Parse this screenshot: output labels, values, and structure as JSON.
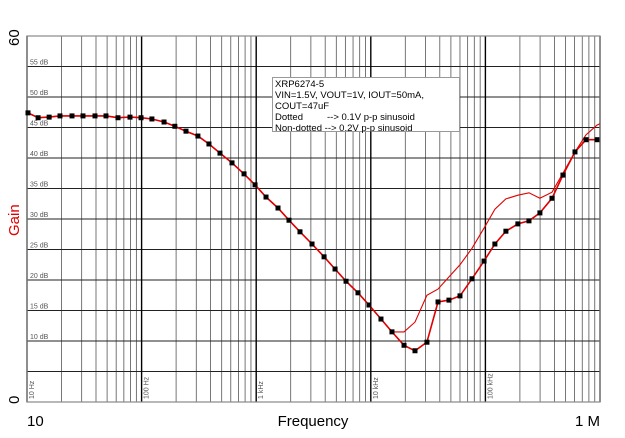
{
  "chart_data": {
    "type": "line",
    "title": "",
    "xlabel": "Frequency",
    "ylabel": "Gain",
    "xscale": "log",
    "xlim": [
      10,
      1000000
    ],
    "ylim": [
      0,
      60
    ],
    "x_end_labels": [
      "10",
      "1 M"
    ],
    "y_end_labels": [
      "0",
      "60"
    ],
    "y_grid_labels": [
      "10 dB",
      "15 dB",
      "20 dB",
      "25 dB",
      "30 dB",
      "35 dB",
      "40 dB",
      "45 dB",
      "50 dB",
      "55 dB"
    ],
    "y_grid_values": [
      10,
      15,
      20,
      25,
      30,
      35,
      40,
      45,
      50,
      55
    ],
    "x_decade_labels": [
      "10 Hz",
      "100 Hz",
      "1 kHz",
      "10 kHz",
      "100 kHz"
    ],
    "x_decade_values": [
      10,
      100,
      1000,
      10000,
      100000
    ],
    "grid": true,
    "legend": {
      "placement": "top-center",
      "lines": [
        "XRP6274-5",
        "VIN=1.5V, VOUT=1V, IOUT=50mA,",
        "COUT=47uF"
      ],
      "entries": [
        {
          "label": "Dotted",
          "desc": "--> 0.1V p-p sinusoid"
        },
        {
          "label": "Non-dotted",
          "desc": "--> 0.2V p-p sinusoid"
        }
      ]
    },
    "colors": {
      "series": "#e00000",
      "marker": "#000000",
      "gain_label": "#e00000"
    },
    "series": [
      {
        "name": "0.1V p-p (dotted)",
        "markers": true,
        "x": [
          10.2,
          12.5,
          15.6,
          19.4,
          24.7,
          30.8,
          39.2,
          48.9,
          62.2,
          79.2,
          98.9,
          123,
          157,
          195,
          244,
          310,
          387,
          483,
          615,
          783,
          977,
          1218,
          1550,
          1933,
          2410,
          3070,
          3910,
          4875,
          6080,
          7730,
          9640,
          12270,
          15300,
          19500,
          24300,
          30900,
          38600,
          48100,
          60000,
          76400,
          97300,
          121000,
          151000,
          192000,
          240000,
          299000,
          381000,
          475000,
          605000,
          755000,
          942000
        ],
        "y": [
          47.4,
          46.6,
          46.7,
          46.9,
          46.9,
          46.9,
          46.9,
          46.9,
          46.6,
          46.7,
          46.6,
          46.4,
          45.9,
          45.2,
          44.4,
          43.6,
          42.3,
          40.8,
          39.2,
          37.4,
          35.6,
          33.6,
          31.8,
          29.8,
          27.9,
          25.9,
          23.8,
          21.8,
          19.8,
          17.9,
          15.9,
          13.6,
          11.5,
          9.3,
          8.4,
          9.8,
          16.4,
          16.7,
          17.4,
          20.2,
          23.1,
          25.9,
          28.0,
          29.2,
          29.7,
          31.0,
          33.4,
          37.2,
          41.0,
          43.0,
          43.0
        ]
      },
      {
        "name": "0.2V p-p (non-dotted)",
        "markers": false,
        "x": [
          10.2,
          12.5,
          15.6,
          19.4,
          24.7,
          30.8,
          39.2,
          48.9,
          62.2,
          79.2,
          98.9,
          123,
          157,
          195,
          244,
          310,
          387,
          483,
          615,
          783,
          977,
          1218,
          1550,
          1933,
          2410,
          3070,
          3910,
          4875,
          6080,
          7730,
          9640,
          12270,
          15300,
          19500,
          24300,
          30900,
          38600,
          48100,
          60000,
          76400,
          97300,
          121000,
          151000,
          192000,
          240000,
          299000,
          381000,
          475000,
          605000,
          755000,
          942000,
          1000000
        ],
        "y": [
          47.4,
          46.6,
          46.7,
          46.9,
          46.9,
          46.9,
          46.9,
          46.9,
          46.6,
          46.7,
          46.6,
          46.4,
          45.9,
          45.2,
          44.4,
          43.6,
          42.3,
          40.8,
          39.2,
          37.4,
          35.6,
          33.6,
          31.8,
          29.8,
          27.9,
          25.9,
          23.8,
          21.8,
          19.8,
          17.9,
          15.9,
          13.6,
          11.5,
          11.5,
          13.1,
          17.5,
          18.5,
          20.5,
          22.5,
          25.2,
          28.5,
          31.6,
          33.3,
          33.9,
          34.3,
          33.4,
          34.4,
          37.5,
          41.0,
          43.8,
          45.4,
          45.6
        ]
      }
    ]
  }
}
